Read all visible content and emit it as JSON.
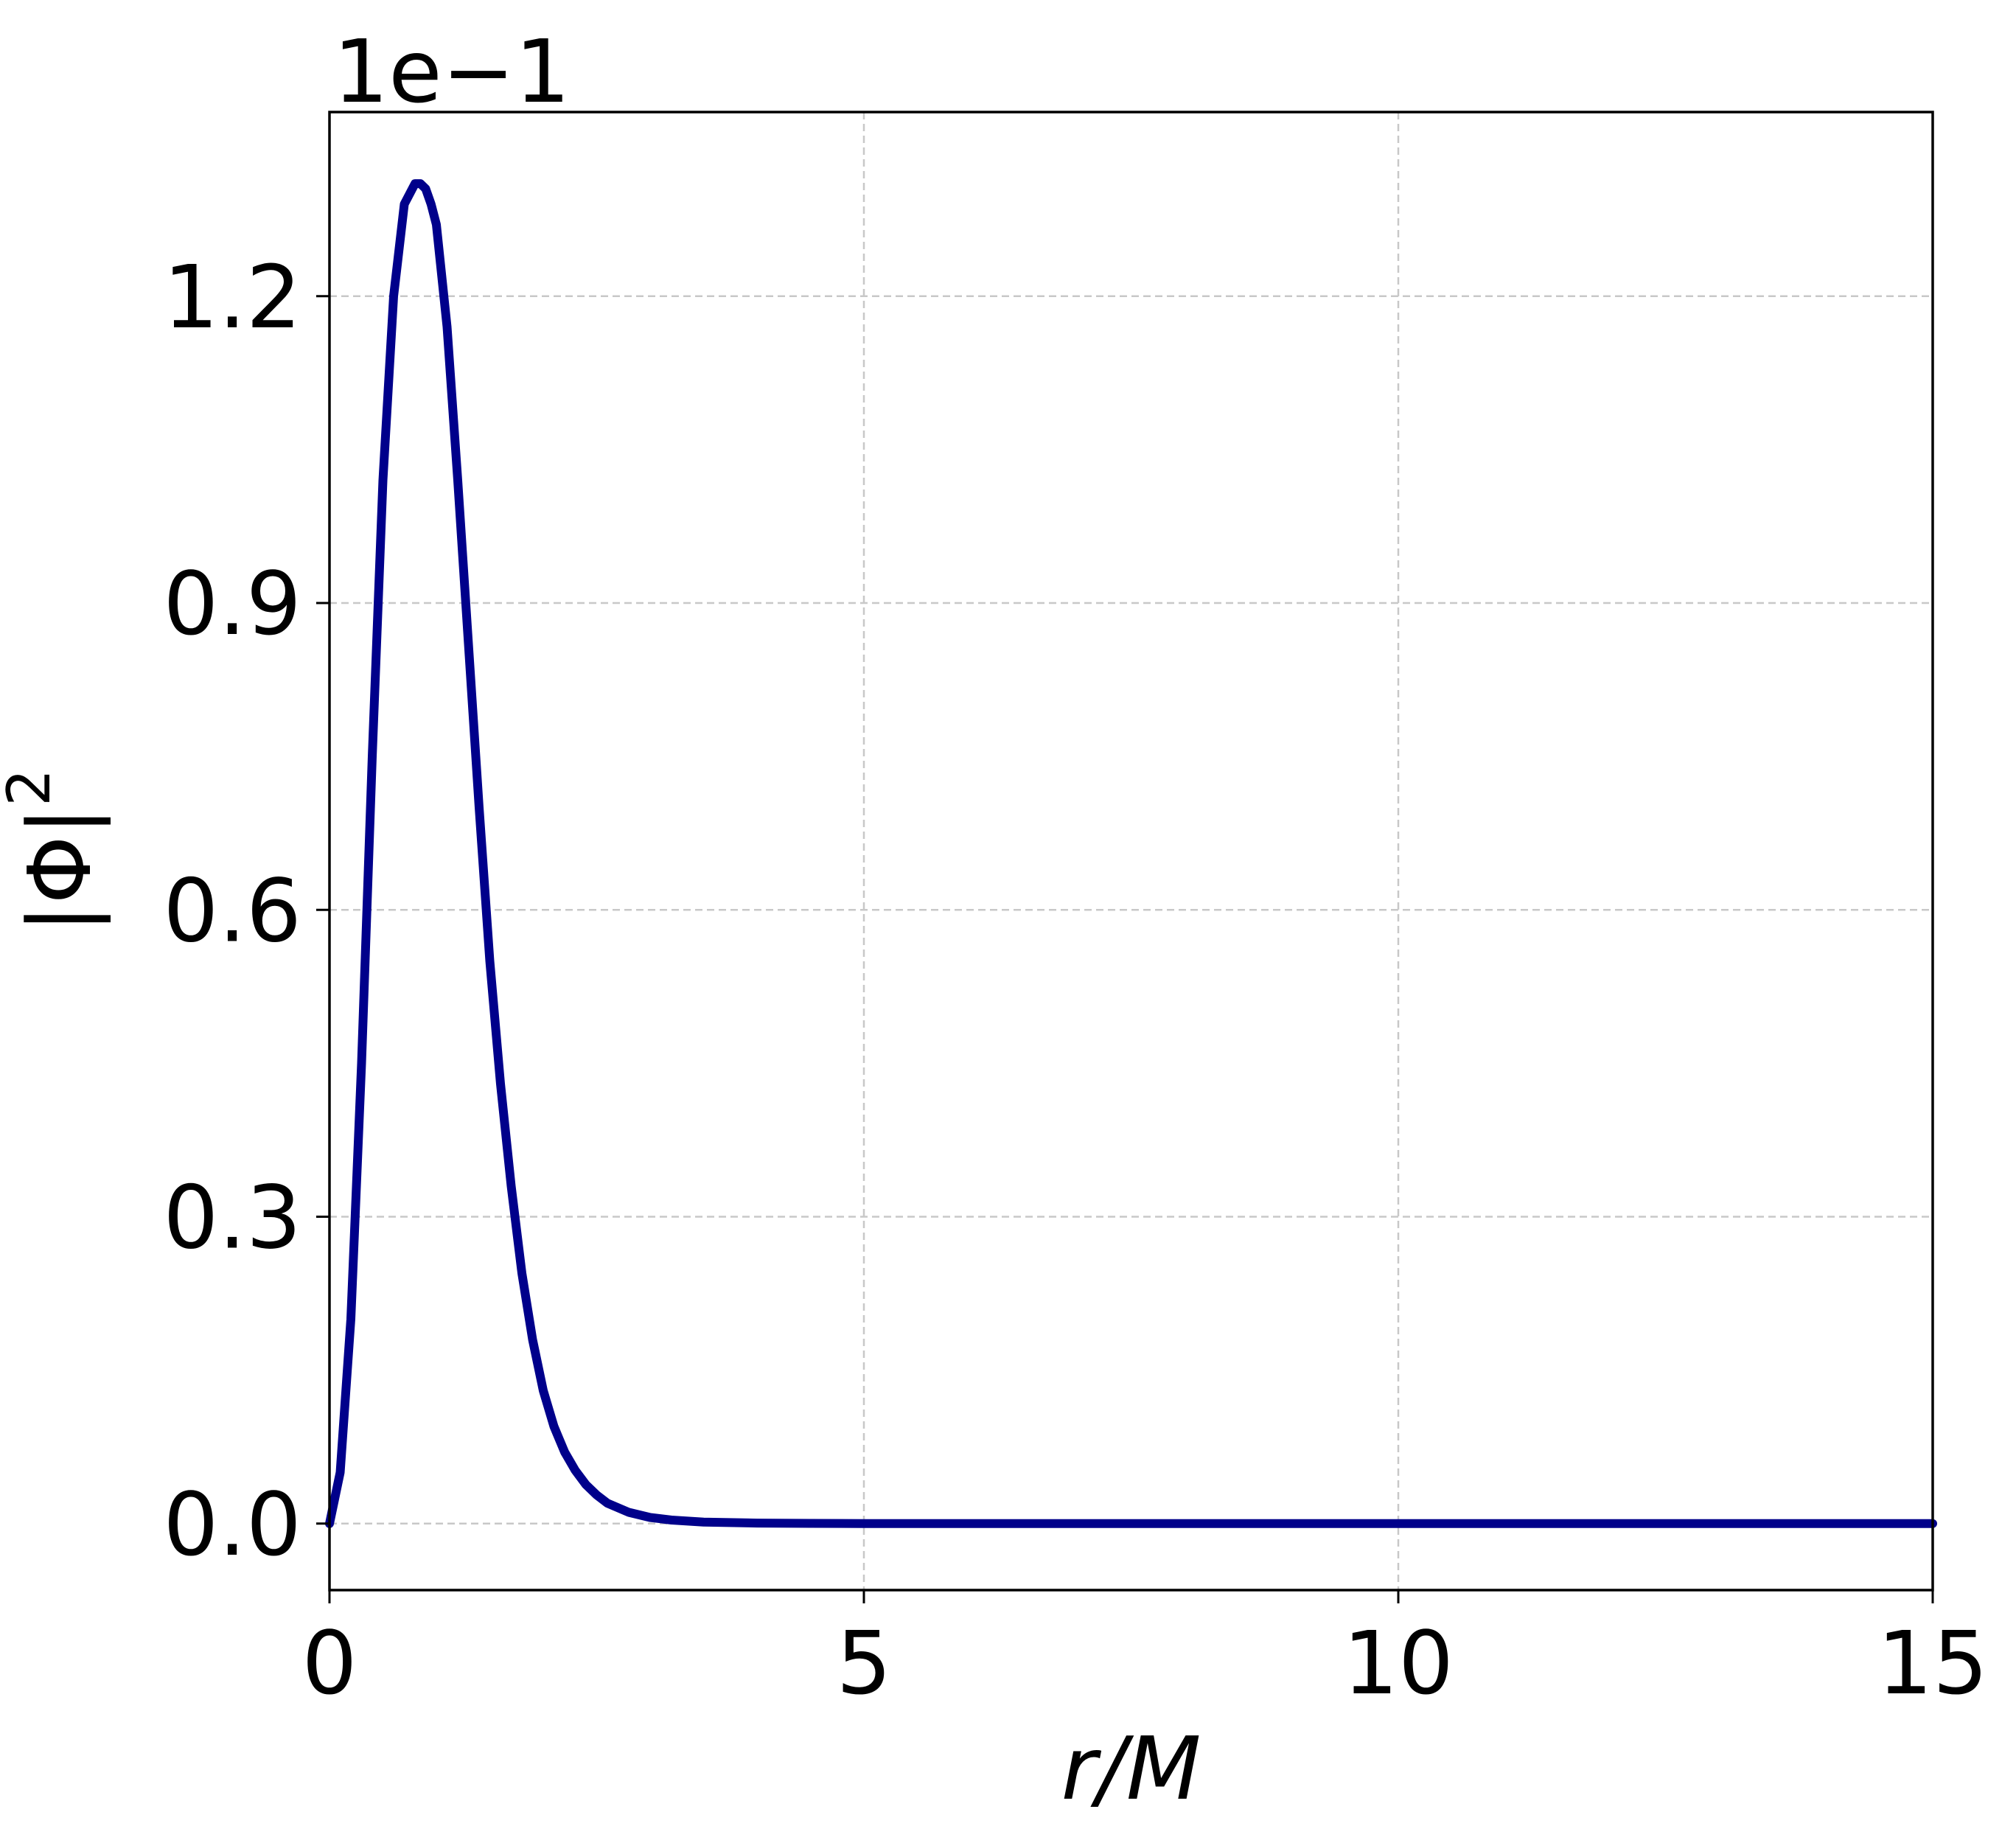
{
  "chart_data": {
    "type": "line",
    "title": "",
    "xlabel": "r/M",
    "ylabel": "|Φ|",
    "ylabel_exponent": "2",
    "offset_text": "1e−1",
    "xlim": [
      0,
      15
    ],
    "ylim": [
      -0.065,
      1.38
    ],
    "xticks": [
      0,
      5,
      10,
      15
    ],
    "xtick_labels": [
      "0",
      "5",
      "10",
      "15"
    ],
    "yticks": [
      0.0,
      0.3,
      0.6,
      0.9,
      1.2
    ],
    "ytick_labels": [
      "0.0",
      "0.3",
      "0.6",
      "0.9",
      "1.2"
    ],
    "grid": true,
    "series": [
      {
        "color": "#00008b",
        "x": [
          0,
          0.1,
          0.2,
          0.3,
          0.4,
          0.5,
          0.6,
          0.7,
          0.8,
          0.85,
          0.9,
          0.95,
          1.0,
          1.1,
          1.2,
          1.3,
          1.4,
          1.5,
          1.6,
          1.7,
          1.8,
          1.9,
          2.0,
          2.1,
          2.2,
          2.3,
          2.4,
          2.5,
          2.6,
          2.8,
          3.0,
          3.2,
          3.5,
          4.0,
          4.5,
          5.0,
          6.0,
          8.0,
          10.0,
          12.0,
          15.0
        ],
        "y": [
          0.0,
          0.05,
          0.2,
          0.45,
          0.75,
          1.02,
          1.2,
          1.29,
          1.31,
          1.31,
          1.305,
          1.29,
          1.27,
          1.17,
          1.02,
          0.86,
          0.7,
          0.55,
          0.43,
          0.33,
          0.245,
          0.18,
          0.13,
          0.095,
          0.07,
          0.052,
          0.038,
          0.028,
          0.02,
          0.011,
          0.006,
          0.0035,
          0.0015,
          0.0005,
          0.0002,
          0.0001,
          0.0,
          0.0,
          0.0,
          0.0,
          0.0
        ]
      }
    ]
  }
}
